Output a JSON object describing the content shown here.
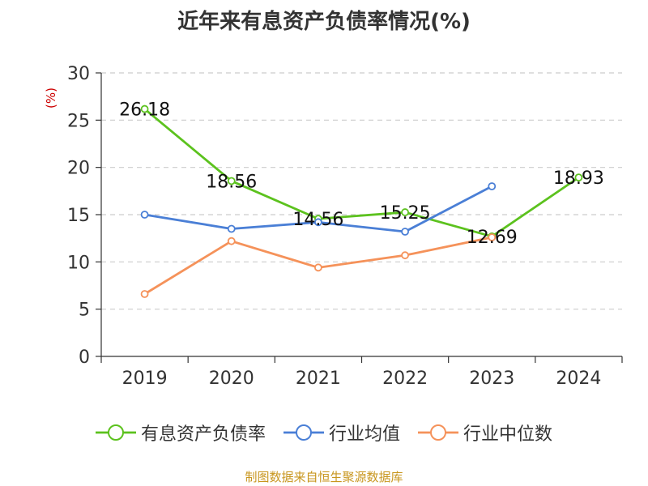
{
  "chart_data": {
    "type": "line",
    "title": "近年来有息资产负债率情况(%)",
    "ylabel": "(%)",
    "xlabel": "",
    "categories": [
      "2019",
      "2020",
      "2021",
      "2022",
      "2023",
      "2024"
    ],
    "ylim": [
      0,
      30
    ],
    "yticks": [
      0,
      5,
      10,
      15,
      20,
      25,
      30
    ],
    "grid": true,
    "legend_position": "bottom",
    "series": [
      {
        "name": "有息资产负债率",
        "color": "#5cc21e",
        "values": [
          26.18,
          18.56,
          14.56,
          15.25,
          12.69,
          18.93
        ],
        "labels": [
          "26.18",
          "18.56",
          "14.56",
          "15.25",
          "12.69",
          "18.93"
        ]
      },
      {
        "name": "行业均值",
        "color": "#4a7fd6",
        "values": [
          15.0,
          13.5,
          14.2,
          13.2,
          18.0,
          null
        ]
      },
      {
        "name": "行业中位数",
        "color": "#f5925a",
        "values": [
          6.6,
          12.2,
          9.4,
          10.7,
          12.6,
          null
        ]
      }
    ]
  },
  "source_note": "制图数据来自恒生聚源数据库"
}
